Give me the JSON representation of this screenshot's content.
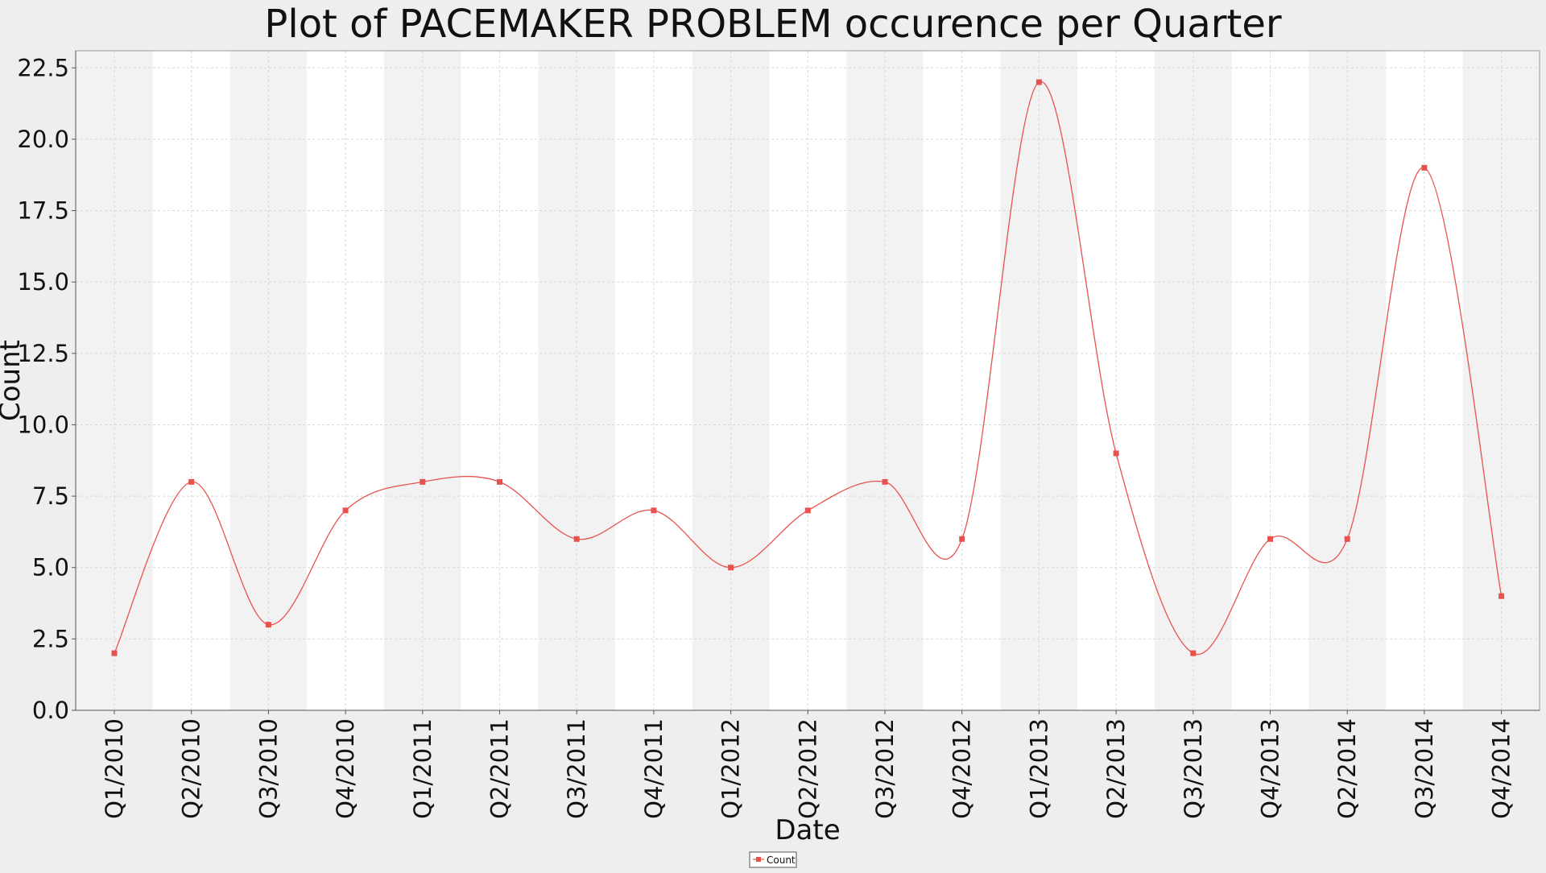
{
  "chart_data": {
    "type": "line",
    "title": "Plot of PACEMAKER PROBLEM occurence per Quarter",
    "xlabel": "Date",
    "ylabel": "Count",
    "categories": [
      "Q1/2010",
      "Q2/2010",
      "Q3/2010",
      "Q4/2010",
      "Q1/2011",
      "Q2/2011",
      "Q3/2011",
      "Q4/2011",
      "Q1/2012",
      "Q2/2012",
      "Q3/2012",
      "Q4/2012",
      "Q1/2013",
      "Q2/2013",
      "Q3/2013",
      "Q4/2013",
      "Q2/2014",
      "Q3/2014",
      "Q4/2014"
    ],
    "series": [
      {
        "name": "Count",
        "values": [
          2,
          8,
          3,
          7,
          8,
          8,
          6,
          7,
          5,
          7,
          8,
          6,
          22,
          9,
          2,
          6,
          6,
          19,
          4
        ]
      }
    ],
    "yticks": [
      "0.0",
      "2.5",
      "5.0",
      "7.5",
      "10.0",
      "12.5",
      "15.0",
      "17.5",
      "20.0",
      "22.5"
    ],
    "ylim": [
      0,
      23.1
    ],
    "grid": true,
    "legend_position": "bottom-center",
    "colors": {
      "series": "#e8524e",
      "band_dark": "#f2f2f2",
      "band_light": "#ffffff",
      "page_bg": "#eeeeee",
      "grid": "#d8d8d8"
    }
  }
}
